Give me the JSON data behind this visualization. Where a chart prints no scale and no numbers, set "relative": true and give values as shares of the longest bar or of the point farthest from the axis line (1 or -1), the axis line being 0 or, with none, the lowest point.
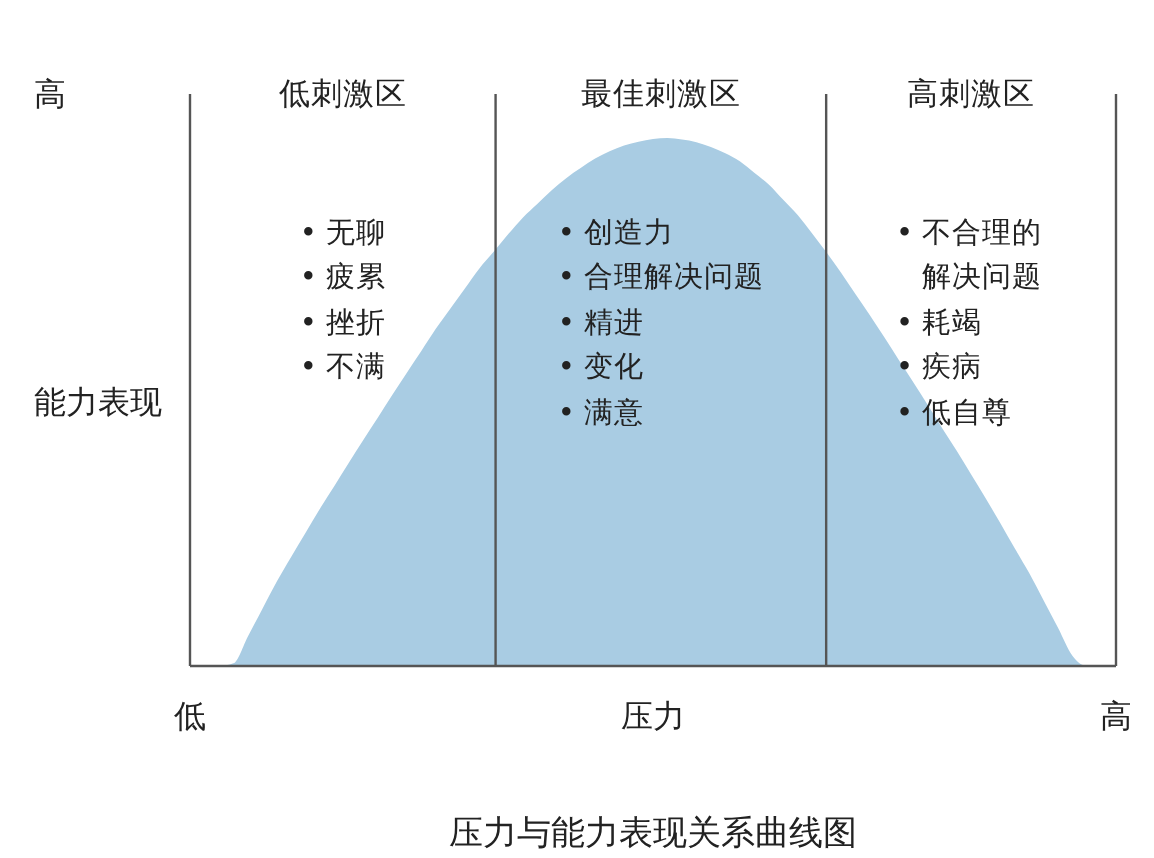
{
  "chart_data": {
    "type": "area",
    "title": "压力与能力表现关系曲线图",
    "xlabel": "压力",
    "ylabel": "能力表现",
    "relative": true,
    "color": "#a9cce3",
    "categories": [
      "低",
      null,
      null,
      null,
      null,
      null,
      null,
      null,
      null,
      null,
      null,
      null,
      null,
      null,
      null,
      null,
      null,
      null,
      null,
      null,
      null,
      null,
      null,
      null,
      null,
      null,
      null,
      null,
      null,
      null,
      null,
      null,
      null,
      null,
      null,
      null,
      null,
      null,
      null,
      null,
      null,
      null,
      null,
      null,
      null,
      null,
      null,
      null,
      null,
      null,
      null,
      null,
      null,
      null,
      null,
      null,
      null,
      null,
      null,
      null,
      null,
      null,
      null,
      null,
      "高"
    ],
    "values": [
      0,
      0,
      0,
      0.005,
      0.056,
      0.108,
      0.16,
      0.207,
      0.253,
      0.299,
      0.342,
      0.386,
      0.429,
      0.471,
      0.514,
      0.556,
      0.597,
      0.639,
      0.677,
      0.715,
      0.753,
      0.785,
      0.818,
      0.849,
      0.875,
      0.901,
      0.924,
      0.943,
      0.961,
      0.975,
      0.986,
      0.993,
      0.998,
      1,
      0.997,
      0.992,
      0.983,
      0.971,
      0.956,
      0.934,
      0.912,
      0.883,
      0.854,
      0.819,
      0.783,
      0.745,
      0.704,
      0.664,
      0.622,
      0.579,
      0.537,
      0.494,
      0.45,
      0.407,
      0.362,
      0.317,
      0.271,
      0.223,
      0.176,
      0.124,
      0.072,
      0.019,
      0,
      0,
      0
    ],
    "annotations": [
      "高",
      "低刺激区",
      "• 无聊",
      "• 疲累",
      "• 挫折",
      "• 不满",
      "最佳刺激区",
      "• 创造力",
      "• 合理解决问题",
      "• 精进",
      "• 变化",
      "• 满意",
      "高刺激区",
      "• 不合理的解决问题",
      "• 耗竭",
      "• 疾病",
      "• 低自尊"
    ]
  }
}
